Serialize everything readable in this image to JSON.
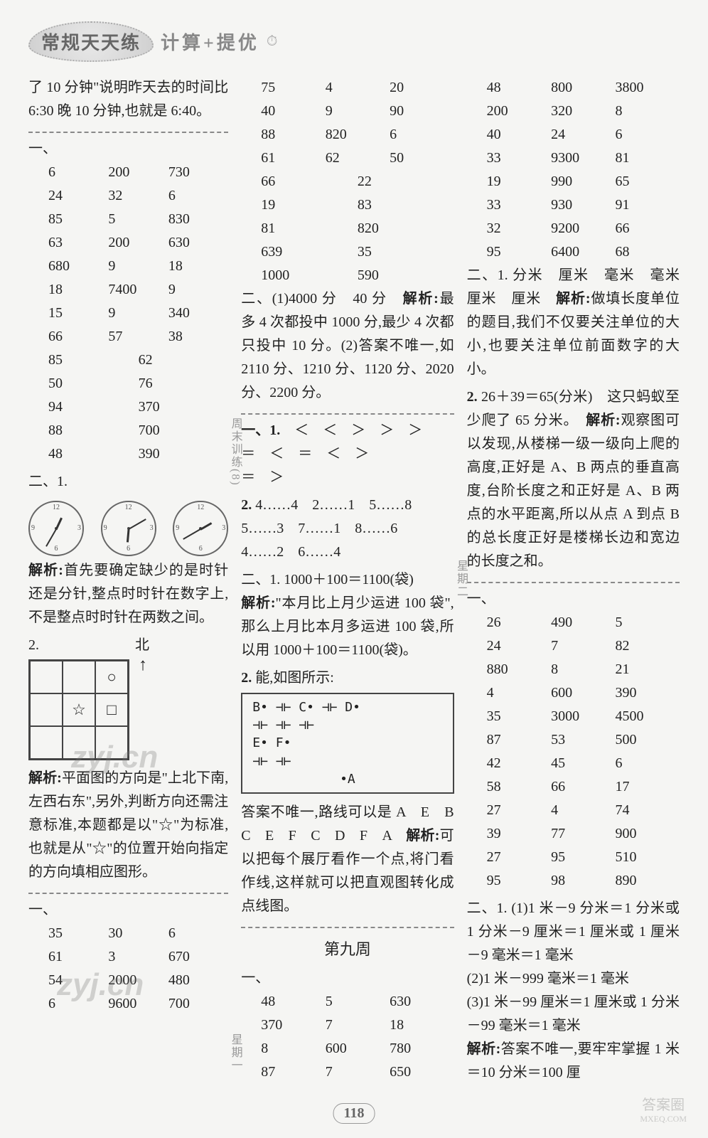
{
  "header": {
    "badge": "常规天天练",
    "subtitle": "计算+提优",
    "clock_glyph": "⏱"
  },
  "pageNumber": "118",
  "cornerLogo": {
    "line1": "答案圈",
    "line2": "MXEQ.COM"
  },
  "watermark": "zyj.cn",
  "col1": {
    "intro": "了 10 分钟\"说明昨天去的时间比 6:30 晚 10 分钟,也就是 6:40。",
    "t1_label": "一、",
    "t1": [
      [
        "6",
        "200",
        "730"
      ],
      [
        "24",
        "32",
        "6"
      ],
      [
        "85",
        "5",
        "830"
      ],
      [
        "63",
        "200",
        "630"
      ],
      [
        "680",
        "9",
        "18"
      ],
      [
        "18",
        "7400",
        "9"
      ],
      [
        "15",
        "9",
        "340"
      ],
      [
        "66",
        "57",
        "38"
      ]
    ],
    "t1b": [
      [
        "85",
        "62"
      ],
      [
        "50",
        "76"
      ],
      [
        "94",
        "370"
      ],
      [
        "88",
        "700"
      ],
      [
        "48",
        "390"
      ]
    ],
    "q21_label": "二、1.",
    "clocks": [
      {
        "hour_deg": -65,
        "min_deg": 120
      },
      {
        "hour_deg": 95,
        "min_deg": -30
      },
      {
        "hour_deg": -30,
        "min_deg": 150
      }
    ],
    "para1a": "解析:",
    "para1b": "首先要确定缺少的是时针还是分针,整点时时针在数字上,不是整点时时针在两数之间。",
    "q22_label": "2.",
    "north": "北",
    "grid": [
      "",
      "",
      "○",
      "",
      "☆",
      "□",
      "",
      "",
      ""
    ],
    "para2a": "解析:",
    "para2b": "平面图的方向是\"上北下南,左西右东\",另外,判断方向还需注意标准,本题都是以\"☆\"为标准,也就是从\"☆\"的位置开始向指定的方向填相应图形。",
    "t2_label": "一、",
    "t2": [
      [
        "35",
        "30",
        "6"
      ],
      [
        "61",
        "3",
        "670"
      ],
      [
        "54",
        "2000",
        "480"
      ],
      [
        "6",
        "9600",
        "700"
      ]
    ]
  },
  "col2": {
    "t1": [
      [
        "75",
        "4",
        "20"
      ],
      [
        "40",
        "9",
        "90"
      ],
      [
        "88",
        "820",
        "6"
      ],
      [
        "61",
        "62",
        "50"
      ]
    ],
    "t1b": [
      [
        "66",
        "22"
      ],
      [
        "19",
        "83"
      ],
      [
        "81",
        "820"
      ],
      [
        "639",
        "35"
      ],
      [
        "1000",
        "590"
      ]
    ],
    "q2a": "二、(1)4000 分　40 分　",
    "q2a_bold": "解析:",
    "q2a2": "最多 4 次都投中 1000 分,最少 4 次都只投中 10 分。(2)答案不唯一,如 2110 分、1210 分、1120 分、2020 分、2200 分。",
    "side_label": "周末训练(8)",
    "cmp_label": "一、1.",
    "cmp": "　＜　＜　＞　＞　＞",
    "cmp2": "＝　＜　＝　＜　＞",
    "cmp3": "＝　＞",
    "dots_label": "2.",
    "dots": " 4……4　2……1　5……8",
    "dots2": "5……3　7……1　8……6",
    "dots3": "4……2　6……4",
    "q21a": "二、1.",
    "q21b": " 1000＋100＝1100(袋)",
    "q21c": "解析:",
    "q21d": "\"本月比上月少运进 100 袋\",那么上月比本月多运进 100 袋,所以用 1000＋100＝1100(袋)。",
    "q22a": "2.",
    "q22b": " 能,如图所示:",
    "circuit": {
      "row1": "B•  ⊣⊢  C•  ⊣⊢  D•",
      "row2": " ⊣⊢    ⊣⊢    ⊣⊢",
      "row3": "E•           F•",
      "row4": " ⊣⊢         ⊣⊢",
      "row5": "        •A"
    },
    "route": "答案不唯一,路线可以是 A　E　B　C　E　F　C　D　F　A　",
    "route_bold": "解析:",
    "route2": "可以把每个展厅看作一个点,将门看作线,这样就可以把直观图转化成点线图。",
    "week_title": "第九周",
    "side_label2": "星期一",
    "t2_label": "一、",
    "t2": [
      [
        "48",
        "5",
        "630"
      ],
      [
        "370",
        "7",
        "18"
      ],
      [
        "8",
        "600",
        "780"
      ],
      [
        "87",
        "7",
        "650"
      ]
    ]
  },
  "col3": {
    "t1": [
      [
        "48",
        "800",
        "3800"
      ],
      [
        "200",
        "320",
        "8"
      ],
      [
        "40",
        "24",
        "6"
      ],
      [
        "33",
        "9300",
        "81"
      ],
      [
        "19",
        "990",
        "65"
      ],
      [
        "33",
        "930",
        "91"
      ],
      [
        "32",
        "9200",
        "66"
      ],
      [
        "95",
        "6400",
        "68"
      ]
    ],
    "q21a": "二、1.",
    "q21b": " 分米　厘米　毫米　毫米　厘米　厘米　",
    "q21c": "解析:",
    "q21d": "做填长度单位的题目,我们不仅要关注单位的大小,也要关注单位前面数字的大小。",
    "q22a": "2.",
    "q22b": " 26＋39＝65(分米)　这只蚂蚁至少爬了 65 分米。　",
    "q22c": "解析:",
    "q22d": "观察图可以发现,从楼梯一级一级向上爬的高度,正好是 A、B 两点的垂直高度,台阶长度之和正好是 A、B 两点的水平距离,所以从点 A 到点 B 的总长度正好是楼梯长边和宽边的长度之和。",
    "side_label": "星期二",
    "t2_label": "一、",
    "t2": [
      [
        "26",
        "490",
        "5"
      ],
      [
        "24",
        "7",
        "82"
      ],
      [
        "880",
        "8",
        "21"
      ],
      [
        "4",
        "600",
        "390"
      ],
      [
        "35",
        "3000",
        "4500"
      ],
      [
        "87",
        "53",
        "500"
      ],
      [
        "42",
        "45",
        "6"
      ],
      [
        "58",
        "66",
        "17"
      ],
      [
        "27",
        "4",
        "74"
      ],
      [
        "39",
        "77",
        "900"
      ],
      [
        "27",
        "95",
        "510"
      ],
      [
        "95",
        "98",
        "890"
      ]
    ],
    "q31a": "二、1.",
    "q31b": " (1)1 米－9 分米＝1 分米或 1 分米－9 厘米＝1 厘米或 1 厘米－9 毫米＝1 毫米",
    "q31c": "(2)1 米－999 毫米＝1 毫米",
    "q31d": "(3)1 米－99 厘米＝1 厘米或 1 分米－99 毫米＝1 毫米",
    "q31e": "解析:",
    "q31f": "答案不唯一,要牢牢掌握 1 米＝10 分米＝100 厘"
  }
}
